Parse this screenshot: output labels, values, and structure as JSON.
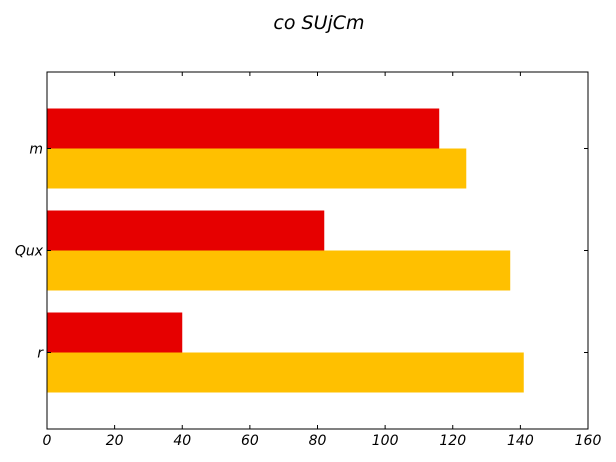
{
  "chart_data": {
    "type": "bar",
    "orientation": "horizontal",
    "title": "co SUjCm",
    "xlabel": "",
    "ylabel": "",
    "categories": [
      "r",
      "Qux",
      "m"
    ],
    "series": [
      {
        "values": [
          40,
          82,
          116
        ],
        "color": "#e60000"
      },
      {
        "values": [
          141,
          137,
          124
        ],
        "color": "#ffc000"
      }
    ],
    "xlim": [
      0,
      160
    ],
    "xticks": [
      0,
      20,
      40,
      60,
      80,
      100,
      120,
      140,
      160
    ],
    "grid": false,
    "legend": "none"
  }
}
